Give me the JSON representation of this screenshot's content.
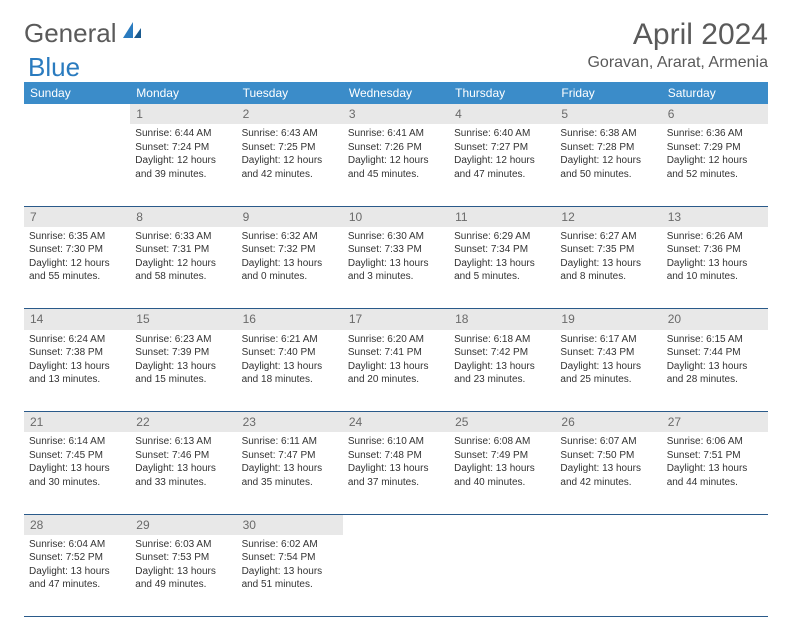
{
  "brand": {
    "part1": "General",
    "part2": "Blue"
  },
  "title": "April 2024",
  "location": "Goravan, Ararat, Armenia",
  "colors": {
    "header_bg": "#3b8cc9",
    "header_text": "#ffffff",
    "daynum_bg": "#e8e8e8",
    "daynum_text": "#6a6a6a",
    "cell_text": "#333333",
    "rule": "#2a5a8a",
    "logo_gray": "#5a5a5a",
    "logo_blue": "#2a7bbf",
    "page_bg": "#ffffff"
  },
  "typography": {
    "title_fontsize": 30,
    "location_fontsize": 16,
    "dayheader_fontsize": 12,
    "daynum_fontsize": 12,
    "body_fontsize": 10
  },
  "day_names": [
    "Sunday",
    "Monday",
    "Tuesday",
    "Wednesday",
    "Thursday",
    "Friday",
    "Saturday"
  ],
  "weeks": [
    [
      null,
      {
        "n": "1",
        "sr": "Sunrise: 6:44 AM",
        "ss": "Sunset: 7:24 PM",
        "d1": "Daylight: 12 hours",
        "d2": "and 39 minutes."
      },
      {
        "n": "2",
        "sr": "Sunrise: 6:43 AM",
        "ss": "Sunset: 7:25 PM",
        "d1": "Daylight: 12 hours",
        "d2": "and 42 minutes."
      },
      {
        "n": "3",
        "sr": "Sunrise: 6:41 AM",
        "ss": "Sunset: 7:26 PM",
        "d1": "Daylight: 12 hours",
        "d2": "and 45 minutes."
      },
      {
        "n": "4",
        "sr": "Sunrise: 6:40 AM",
        "ss": "Sunset: 7:27 PM",
        "d1": "Daylight: 12 hours",
        "d2": "and 47 minutes."
      },
      {
        "n": "5",
        "sr": "Sunrise: 6:38 AM",
        "ss": "Sunset: 7:28 PM",
        "d1": "Daylight: 12 hours",
        "d2": "and 50 minutes."
      },
      {
        "n": "6",
        "sr": "Sunrise: 6:36 AM",
        "ss": "Sunset: 7:29 PM",
        "d1": "Daylight: 12 hours",
        "d2": "and 52 minutes."
      }
    ],
    [
      {
        "n": "7",
        "sr": "Sunrise: 6:35 AM",
        "ss": "Sunset: 7:30 PM",
        "d1": "Daylight: 12 hours",
        "d2": "and 55 minutes."
      },
      {
        "n": "8",
        "sr": "Sunrise: 6:33 AM",
        "ss": "Sunset: 7:31 PM",
        "d1": "Daylight: 12 hours",
        "d2": "and 58 minutes."
      },
      {
        "n": "9",
        "sr": "Sunrise: 6:32 AM",
        "ss": "Sunset: 7:32 PM",
        "d1": "Daylight: 13 hours",
        "d2": "and 0 minutes."
      },
      {
        "n": "10",
        "sr": "Sunrise: 6:30 AM",
        "ss": "Sunset: 7:33 PM",
        "d1": "Daylight: 13 hours",
        "d2": "and 3 minutes."
      },
      {
        "n": "11",
        "sr": "Sunrise: 6:29 AM",
        "ss": "Sunset: 7:34 PM",
        "d1": "Daylight: 13 hours",
        "d2": "and 5 minutes."
      },
      {
        "n": "12",
        "sr": "Sunrise: 6:27 AM",
        "ss": "Sunset: 7:35 PM",
        "d1": "Daylight: 13 hours",
        "d2": "and 8 minutes."
      },
      {
        "n": "13",
        "sr": "Sunrise: 6:26 AM",
        "ss": "Sunset: 7:36 PM",
        "d1": "Daylight: 13 hours",
        "d2": "and 10 minutes."
      }
    ],
    [
      {
        "n": "14",
        "sr": "Sunrise: 6:24 AM",
        "ss": "Sunset: 7:38 PM",
        "d1": "Daylight: 13 hours",
        "d2": "and 13 minutes."
      },
      {
        "n": "15",
        "sr": "Sunrise: 6:23 AM",
        "ss": "Sunset: 7:39 PM",
        "d1": "Daylight: 13 hours",
        "d2": "and 15 minutes."
      },
      {
        "n": "16",
        "sr": "Sunrise: 6:21 AM",
        "ss": "Sunset: 7:40 PM",
        "d1": "Daylight: 13 hours",
        "d2": "and 18 minutes."
      },
      {
        "n": "17",
        "sr": "Sunrise: 6:20 AM",
        "ss": "Sunset: 7:41 PM",
        "d1": "Daylight: 13 hours",
        "d2": "and 20 minutes."
      },
      {
        "n": "18",
        "sr": "Sunrise: 6:18 AM",
        "ss": "Sunset: 7:42 PM",
        "d1": "Daylight: 13 hours",
        "d2": "and 23 minutes."
      },
      {
        "n": "19",
        "sr": "Sunrise: 6:17 AM",
        "ss": "Sunset: 7:43 PM",
        "d1": "Daylight: 13 hours",
        "d2": "and 25 minutes."
      },
      {
        "n": "20",
        "sr": "Sunrise: 6:15 AM",
        "ss": "Sunset: 7:44 PM",
        "d1": "Daylight: 13 hours",
        "d2": "and 28 minutes."
      }
    ],
    [
      {
        "n": "21",
        "sr": "Sunrise: 6:14 AM",
        "ss": "Sunset: 7:45 PM",
        "d1": "Daylight: 13 hours",
        "d2": "and 30 minutes."
      },
      {
        "n": "22",
        "sr": "Sunrise: 6:13 AM",
        "ss": "Sunset: 7:46 PM",
        "d1": "Daylight: 13 hours",
        "d2": "and 33 minutes."
      },
      {
        "n": "23",
        "sr": "Sunrise: 6:11 AM",
        "ss": "Sunset: 7:47 PM",
        "d1": "Daylight: 13 hours",
        "d2": "and 35 minutes."
      },
      {
        "n": "24",
        "sr": "Sunrise: 6:10 AM",
        "ss": "Sunset: 7:48 PM",
        "d1": "Daylight: 13 hours",
        "d2": "and 37 minutes."
      },
      {
        "n": "25",
        "sr": "Sunrise: 6:08 AM",
        "ss": "Sunset: 7:49 PM",
        "d1": "Daylight: 13 hours",
        "d2": "and 40 minutes."
      },
      {
        "n": "26",
        "sr": "Sunrise: 6:07 AM",
        "ss": "Sunset: 7:50 PM",
        "d1": "Daylight: 13 hours",
        "d2": "and 42 minutes."
      },
      {
        "n": "27",
        "sr": "Sunrise: 6:06 AM",
        "ss": "Sunset: 7:51 PM",
        "d1": "Daylight: 13 hours",
        "d2": "and 44 minutes."
      }
    ],
    [
      {
        "n": "28",
        "sr": "Sunrise: 6:04 AM",
        "ss": "Sunset: 7:52 PM",
        "d1": "Daylight: 13 hours",
        "d2": "and 47 minutes."
      },
      {
        "n": "29",
        "sr": "Sunrise: 6:03 AM",
        "ss": "Sunset: 7:53 PM",
        "d1": "Daylight: 13 hours",
        "d2": "and 49 minutes."
      },
      {
        "n": "30",
        "sr": "Sunrise: 6:02 AM",
        "ss": "Sunset: 7:54 PM",
        "d1": "Daylight: 13 hours",
        "d2": "and 51 minutes."
      },
      null,
      null,
      null,
      null
    ]
  ]
}
